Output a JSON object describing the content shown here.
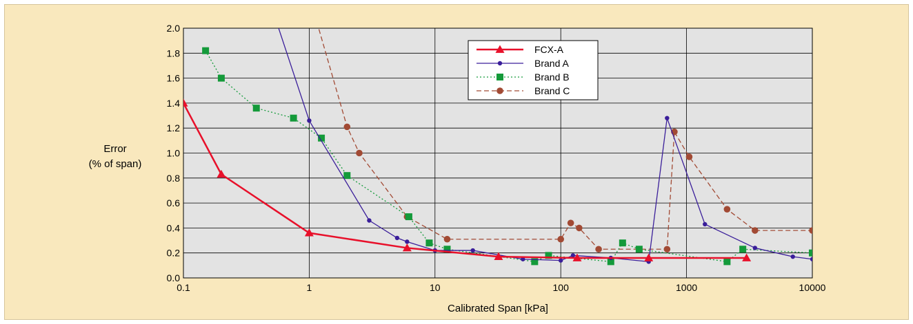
{
  "chart_data": {
    "type": "line",
    "xlabel": "Calibrated Span [kPa]",
    "ylabel_lines": [
      "Error",
      "(% of span)"
    ],
    "x_scale": "log",
    "xlim": [
      0.1,
      10000
    ],
    "ylim": [
      0,
      2.0
    ],
    "x_ticks": [
      {
        "value": 0.1,
        "label": "0.1"
      },
      {
        "value": 1,
        "label": "1"
      },
      {
        "value": 10,
        "label": "10"
      },
      {
        "value": 100,
        "label": "100"
      },
      {
        "value": 1000,
        "label": "1000"
      },
      {
        "value": 10000,
        "label": "10000"
      }
    ],
    "y_ticks": [
      {
        "value": 0.0,
        "label": "0.0"
      },
      {
        "value": 0.2,
        "label": "0.2"
      },
      {
        "value": 0.4,
        "label": "0.4"
      },
      {
        "value": 0.6,
        "label": "0.6"
      },
      {
        "value": 0.8,
        "label": "0.8"
      },
      {
        "value": 1.0,
        "label": "1.0"
      },
      {
        "value": 1.2,
        "label": "1.2"
      },
      {
        "value": 1.4,
        "label": "1.4"
      },
      {
        "value": 1.6,
        "label": "1.6"
      },
      {
        "value": 1.8,
        "label": "1.8"
      },
      {
        "value": 2.0,
        "label": "2.0"
      }
    ],
    "grid": true,
    "legend_position": "top-center",
    "series": [
      {
        "name": "FCX-A",
        "color": "#e8102a",
        "dash": "solid",
        "marker": "triangle",
        "width": 2.5,
        "points": [
          [
            0.1,
            1.4
          ],
          [
            0.2,
            0.83
          ],
          [
            1,
            0.36
          ],
          [
            6,
            0.24
          ],
          [
            32,
            0.17
          ],
          [
            135,
            0.16
          ],
          [
            500,
            0.16
          ],
          [
            3000,
            0.16
          ]
        ]
      },
      {
        "name": "Brand A",
        "color": "#3a1e9a",
        "dash": "solid",
        "marker": "dot",
        "width": 1.3,
        "points": [
          [
            0.55,
            2.05
          ],
          [
            1,
            1.26
          ],
          [
            3,
            0.46
          ],
          [
            5,
            0.32
          ],
          [
            6,
            0.29
          ],
          [
            10,
            0.22
          ],
          [
            20,
            0.22
          ],
          [
            50,
            0.15
          ],
          [
            100,
            0.14
          ],
          [
            125,
            0.18
          ],
          [
            250,
            0.16
          ],
          [
            500,
            0.13
          ],
          [
            700,
            1.28
          ],
          [
            1400,
            0.43
          ],
          [
            3500,
            0.24
          ],
          [
            7000,
            0.17
          ],
          [
            10000,
            0.15
          ]
        ]
      },
      {
        "name": "Brand B",
        "color": "#149a3a",
        "dash": "dotted",
        "marker": "square",
        "width": 1.3,
        "points": [
          [
            0.15,
            1.82
          ],
          [
            0.2,
            1.6
          ],
          [
            0.38,
            1.36
          ],
          [
            0.75,
            1.28
          ],
          [
            1.25,
            1.12
          ],
          [
            2,
            0.82
          ],
          [
            6.2,
            0.49
          ],
          [
            9,
            0.28
          ],
          [
            12.5,
            0.23
          ],
          [
            62,
            0.13
          ],
          [
            80,
            0.18
          ],
          [
            250,
            0.13
          ],
          [
            310,
            0.28
          ],
          [
            420,
            0.23
          ],
          [
            2100,
            0.13
          ],
          [
            2800,
            0.23
          ],
          [
            10000,
            0.2
          ]
        ]
      },
      {
        "name": "Brand C",
        "color": "#a24a34",
        "dash": "dashed",
        "marker": "circle",
        "width": 1.3,
        "points": [
          [
            1.15,
            2.05
          ],
          [
            2,
            1.21
          ],
          [
            2.5,
            1.0
          ],
          [
            6,
            0.49
          ],
          [
            12.5,
            0.31
          ],
          [
            100,
            0.31
          ],
          [
            120,
            0.44
          ],
          [
            140,
            0.4
          ],
          [
            200,
            0.23
          ],
          [
            700,
            0.23
          ],
          [
            800,
            1.17
          ],
          [
            1050,
            0.97
          ],
          [
            2100,
            0.55
          ],
          [
            3500,
            0.38
          ],
          [
            10000,
            0.38
          ]
        ]
      }
    ]
  }
}
